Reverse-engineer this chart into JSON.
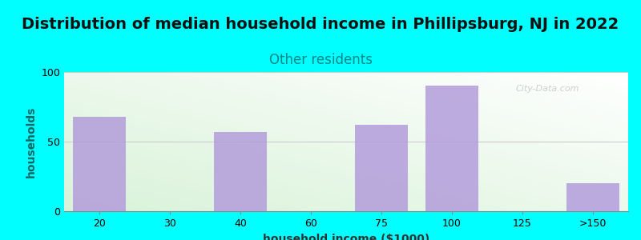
{
  "title": "Distribution of median household income in Phillipsburg, NJ in 2022",
  "subtitle": "Other residents",
  "xlabel": "household income ($1000)",
  "ylabel": "households",
  "background_color": "#00FFFF",
  "bar_color": "#b39ddb",
  "categories": [
    "20",
    "30",
    "40",
    "60",
    "75",
    "100",
    "125",
    ">150"
  ],
  "values": [
    68,
    0,
    57,
    0,
    62,
    90,
    0,
    20
  ],
  "ylim": [
    0,
    100
  ],
  "yticks": [
    0,
    50,
    100
  ],
  "title_fontsize": 14,
  "subtitle_fontsize": 12,
  "subtitle_color": "#008888",
  "title_color": "#111111",
  "axis_label_fontsize": 10,
  "tick_fontsize": 9,
  "ylabel_color": "#006666",
  "xlabel_color": "#333333",
  "grid_color": "#cccccc",
  "watermark": "City-Data.com"
}
